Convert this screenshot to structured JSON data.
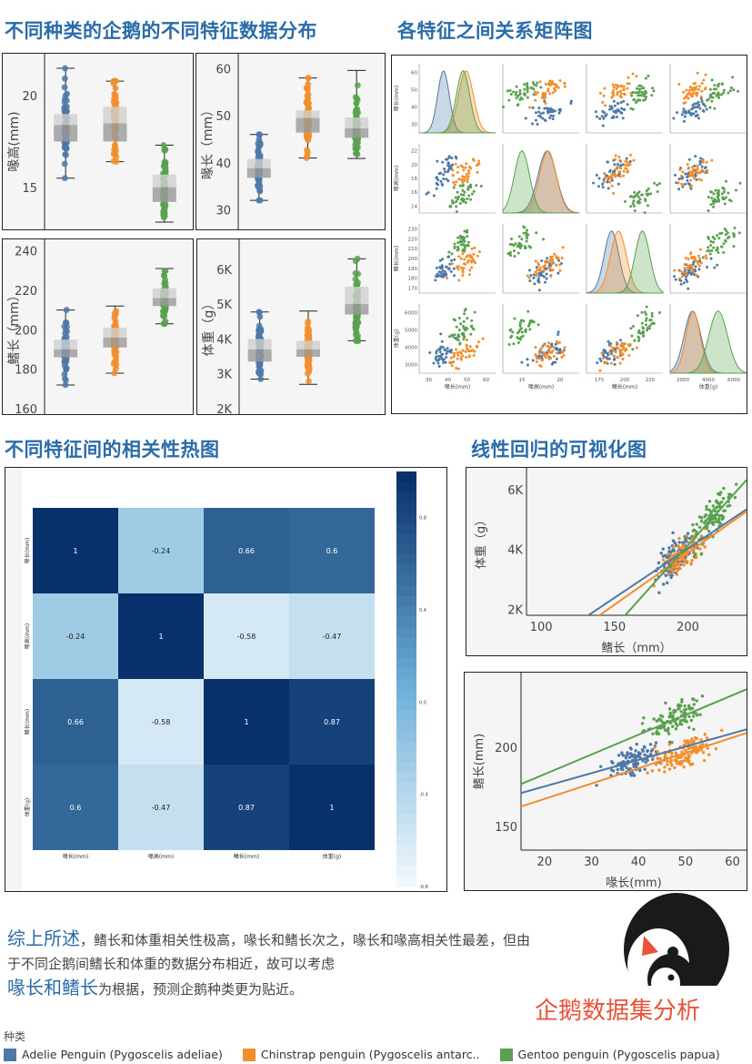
{
  "titles": {
    "dist": "不同种类的企鹅的不同特征数据分布",
    "matrix": "各特征之间关系矩阵图",
    "heatmap": "不同特征间的相关性热图",
    "regression": "线性回归的可视化图"
  },
  "colors": {
    "adelie": "#4e79a7",
    "chinstrap": "#f28e2b",
    "gentoo": "#59a14f",
    "accent": "#2a6ba8",
    "brand": "#e8533a"
  },
  "chart_data": [
    {
      "type": "box",
      "ylabel": "喙高(mm)",
      "ylim": [
        13,
        22
      ],
      "ticks": [
        "15",
        "20"
      ],
      "tickvals": [
        15,
        20
      ],
      "series": [
        {
          "name": "Adelie",
          "min": 15.5,
          "q1": 17.5,
          "med": 18.4,
          "q3": 19.0,
          "max": 21.5
        },
        {
          "name": "Chinstrap",
          "min": 16.4,
          "q1": 17.5,
          "med": 18.5,
          "q3": 19.4,
          "max": 20.8
        },
        {
          "name": "Gentoo",
          "min": 13.1,
          "q1": 14.2,
          "med": 15.0,
          "q3": 15.7,
          "max": 17.3
        }
      ]
    },
    {
      "type": "box",
      "ylabel": "喙长（mm）",
      "ylim": [
        27,
        62
      ],
      "ticks": [
        "30",
        "40",
        "50",
        "60"
      ],
      "tickvals": [
        30,
        40,
        50,
        60
      ],
      "series": [
        {
          "name": "Adelie",
          "min": 32,
          "q1": 36.8,
          "med": 38.8,
          "q3": 40.8,
          "max": 46
        },
        {
          "name": "Chinstrap",
          "min": 41,
          "q1": 46.4,
          "med": 49.5,
          "q3": 51.1,
          "max": 58
        },
        {
          "name": "Gentoo",
          "min": 40.9,
          "q1": 45.3,
          "med": 47.3,
          "q3": 49.6,
          "max": 59.6
        }
      ]
    },
    {
      "type": "box",
      "ylabel": "鳍长（mm）",
      "ylim": [
        160,
        243
      ],
      "ticks": [
        "160",
        "180",
        "200",
        "220",
        "240"
      ],
      "tickvals": [
        160,
        180,
        200,
        220,
        240
      ],
      "series": [
        {
          "name": "Adelie",
          "min": 172,
          "q1": 186,
          "med": 190,
          "q3": 195,
          "max": 210
        },
        {
          "name": "Chinstrap",
          "min": 178,
          "q1": 191,
          "med": 196,
          "q3": 201,
          "max": 212
        },
        {
          "name": "Gentoo",
          "min": 203,
          "q1": 212,
          "med": 216,
          "q3": 221,
          "max": 231
        }
      ]
    },
    {
      "type": "box",
      "ylabel": "体重（g）",
      "ylim": [
        2000,
        6700
      ],
      "ticks": [
        "2K",
        "3K",
        "4K",
        "5K",
        "6K"
      ],
      "tickvals": [
        2000,
        3000,
        4000,
        5000,
        6000
      ],
      "series": [
        {
          "name": "Adelie",
          "min": 2850,
          "q1": 3350,
          "med": 3700,
          "q3": 4000,
          "max": 4775
        },
        {
          "name": "Chinstrap",
          "min": 2700,
          "q1": 3487,
          "med": 3700,
          "q3": 3950,
          "max": 4800
        },
        {
          "name": "Gentoo",
          "min": 3950,
          "q1": 4700,
          "med": 5000,
          "q3": 5500,
          "max": 6300
        }
      ]
    },
    {
      "type": "heatmap",
      "labels": [
        "喙长(mm)",
        "喙高(mm)",
        "鳍长(mm)",
        "体重(g)"
      ],
      "matrix": [
        [
          1,
          -0.24,
          0.66,
          0.6
        ],
        [
          -0.24,
          1,
          -0.58,
          -0.47
        ],
        [
          0.66,
          -0.58,
          1,
          0.87
        ],
        [
          0.6,
          -0.47,
          0.87,
          1
        ]
      ],
      "cell_labels": [
        [
          "1",
          "-0.24",
          "0.66",
          "0.6"
        ],
        [
          "-0.24",
          "1",
          "-0.58",
          "-0.47"
        ],
        [
          "0.66",
          "-0.58",
          "1",
          "0.87"
        ],
        [
          "0.6",
          "-0.47",
          "0.87",
          "1"
        ]
      ],
      "colorbar_ticks": [
        "0.8",
        "0.4",
        "0.0",
        "-0.4",
        "-0.8"
      ]
    },
    {
      "type": "scatter",
      "xlabel": "鳍长（mm）",
      "ylabel": "体重（g）",
      "xlim": [
        90,
        240
      ],
      "ylim": [
        1800,
        6600
      ],
      "xticks": [
        "100",
        "150",
        "200"
      ],
      "xtickvals": [
        100,
        150,
        200
      ],
      "yticks": [
        "2K",
        "4K",
        "6K"
      ],
      "ytickvals": [
        2000,
        4000,
        6000
      ],
      "series": [
        {
          "name": "Adelie",
          "cx": 190,
          "sx": 6.5,
          "cy": 3700,
          "sy": 450,
          "slope": 32.8,
          "intercept": -2536
        },
        {
          "name": "Chinstrap",
          "cx": 196,
          "sx": 7,
          "cy": 3733,
          "sy": 380,
          "slope": 34.6,
          "intercept": -3037
        },
        {
          "name": "Gentoo",
          "cx": 217,
          "sx": 6.5,
          "cy": 5076,
          "sy": 500,
          "slope": 54.6,
          "intercept": -6787
        }
      ]
    },
    {
      "type": "scatter",
      "xlabel": "喙长(mm)",
      "ylabel": "鳍长(mm)",
      "xlim": [
        15,
        63
      ],
      "ylim": [
        135,
        245
      ],
      "xticks": [
        "20",
        "30",
        "40",
        "50",
        "60"
      ],
      "xtickvals": [
        20,
        30,
        40,
        50,
        60
      ],
      "yticks": [
        "150",
        "200"
      ],
      "ytickvals": [
        150,
        200
      ],
      "series": [
        {
          "name": "Adelie",
          "cx": 38.8,
          "sx": 2.6,
          "cy": 190,
          "sy": 6.5,
          "slope": 0.84,
          "intercept": 158.5
        },
        {
          "name": "Chinstrap",
          "cx": 48.8,
          "sx": 3.3,
          "cy": 196,
          "sy": 7,
          "slope": 0.97,
          "intercept": 148
        },
        {
          "name": "Gentoo",
          "cx": 47.5,
          "sx": 3,
          "cy": 217,
          "sy": 6.5,
          "slope": 1.25,
          "intercept": 158
        }
      ]
    }
  ],
  "matrix_axes": {
    "labels": [
      "喙长(mm)",
      "喙高(mm)",
      "鳍长(mm)",
      "体重(g)"
    ],
    "xticks": [
      [
        "30",
        "40",
        "50",
        "60"
      ],
      [
        "15",
        "20"
      ],
      [
        "175",
        "200",
        "225"
      ],
      [
        "2000",
        "4000",
        "6000"
      ]
    ],
    "yticks": [
      [
        "30",
        "40",
        "50",
        "60"
      ],
      [
        "14",
        "16",
        "18",
        "20",
        "22"
      ],
      [
        "170",
        "180",
        "190",
        "200",
        "210",
        "220",
        "230"
      ],
      [
        "3000",
        "4000",
        "5000",
        "6000"
      ]
    ]
  },
  "summary": {
    "part1_big": "综上所述",
    "part1": "，鳍长和体重相关性极高，喙长和鳍长次之，喙长和喙高相关性最差，但由于不同企鹅间鳍长和体重的数据分布相近，故可以考虑",
    "part2_big": "喙长和鳍长",
    "part2": "为根据，预测企鹅种类更为贴近。"
  },
  "brand": "企鹅数据集分析",
  "legend": {
    "title": "种类",
    "items": [
      "Adelie Penguin (Pygoscelis adeliae)",
      "Chinstrap penguin (Pygoscelis antarc..",
      "Gentoo penguin (Pygoscelis papua)"
    ]
  }
}
